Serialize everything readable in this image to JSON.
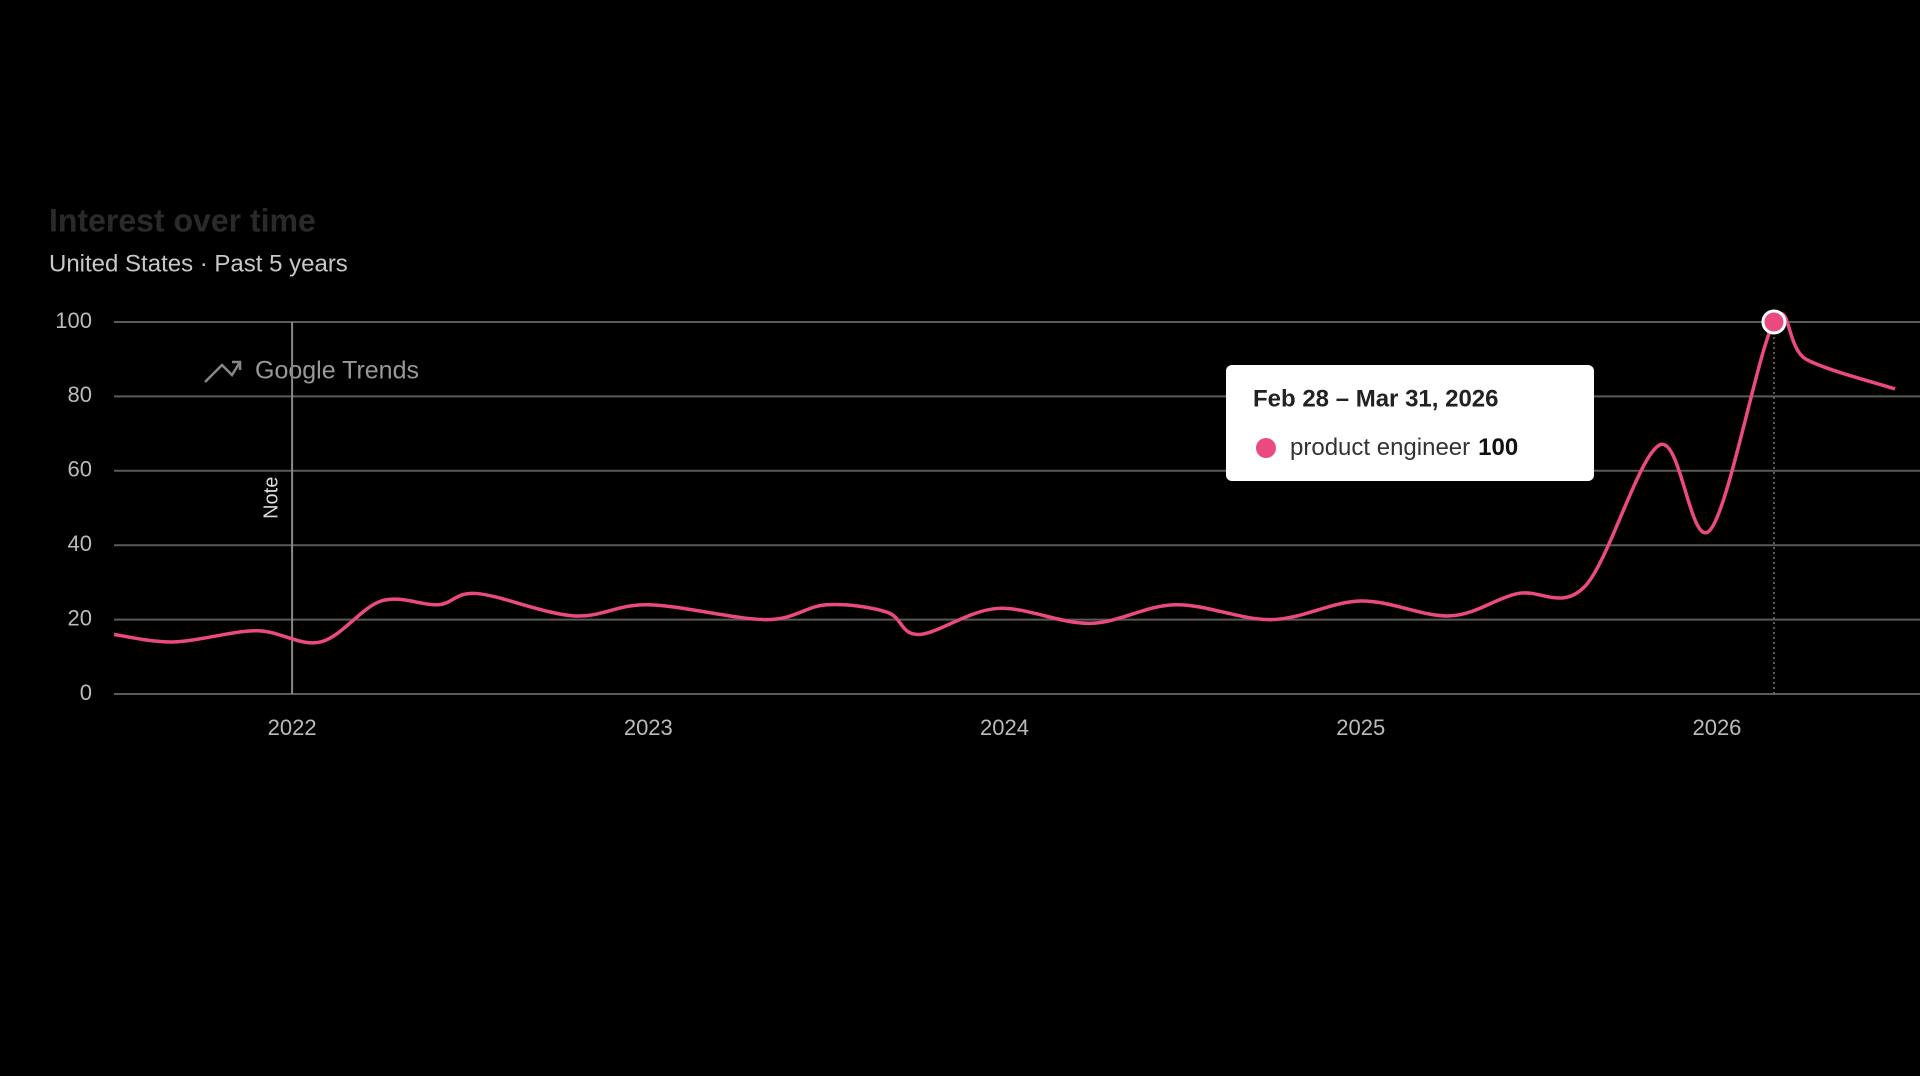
{
  "chart_data": {
    "type": "line",
    "title": "Interest over time",
    "subtitle": "United States · Past 5 years",
    "watermark": "Google Trends",
    "x": [
      2021.5,
      2021.67,
      2021.9,
      2022.08,
      2022.25,
      2022.41,
      2022.52,
      2022.79,
      2023.0,
      2023.33,
      2023.5,
      2023.67,
      2023.76,
      2023.98,
      2024.24,
      2024.48,
      2024.75,
      2025.0,
      2025.25,
      2025.44,
      2025.63,
      2025.84,
      2025.98,
      2026.16,
      2026.25,
      2026.5
    ],
    "series": [
      {
        "name": "product engineer",
        "color": "#ea4a7e",
        "values": [
          16,
          14,
          17,
          14,
          25,
          24,
          27,
          21,
          24,
          20,
          24,
          22,
          16,
          23,
          19,
          24,
          20,
          25,
          21,
          27,
          29,
          67,
          44,
          100,
          90,
          82
        ]
      }
    ],
    "xlim": [
      2021.5,
      2026.57
    ],
    "xticks": [
      2022,
      2023,
      2024,
      2025,
      2026
    ],
    "ylim": [
      0,
      100
    ],
    "yticks": [
      0,
      20,
      40,
      60,
      80,
      100
    ],
    "grid": true,
    "note": {
      "x": 2022,
      "label": "Note"
    },
    "tooltip": {
      "date": "Feb 28 – Mar 31, 2026",
      "index": 23
    }
  }
}
